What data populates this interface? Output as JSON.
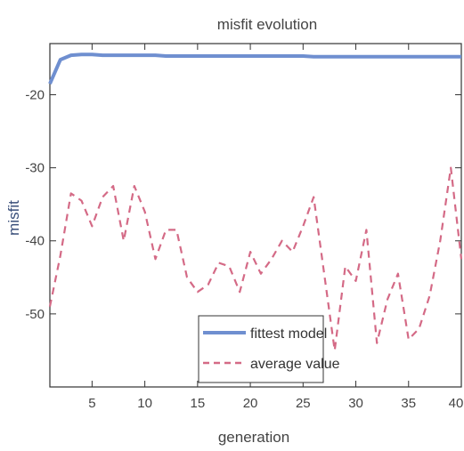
{
  "chart_data": {
    "type": "line",
    "title": "misfit evolution",
    "xlabel": "generation",
    "ylabel": "misfit",
    "xlim": [
      1,
      40
    ],
    "ylim": [
      -60,
      -13
    ],
    "xticks": [
      5,
      10,
      15,
      20,
      25,
      30,
      35,
      40
    ],
    "yticks": [
      -20,
      -30,
      -40,
      -50
    ],
    "legend_position": "bottom-center",
    "series": [
      {
        "name": "fittest model",
        "color": "#6f8fd0",
        "style": "solid",
        "x": [
          1,
          2,
          3,
          4,
          5,
          6,
          7,
          8,
          9,
          10,
          11,
          12,
          13,
          14,
          15,
          16,
          17,
          18,
          19,
          20,
          21,
          22,
          23,
          24,
          25,
          26,
          27,
          28,
          29,
          30,
          31,
          32,
          33,
          34,
          35,
          36,
          37,
          38,
          39,
          40
        ],
        "y": [
          -18.5,
          -15.2,
          -14.6,
          -14.5,
          -14.5,
          -14.6,
          -14.6,
          -14.6,
          -14.6,
          -14.6,
          -14.6,
          -14.7,
          -14.7,
          -14.7,
          -14.7,
          -14.7,
          -14.7,
          -14.7,
          -14.7,
          -14.7,
          -14.7,
          -14.7,
          -14.7,
          -14.7,
          -14.7,
          -14.8,
          -14.8,
          -14.8,
          -14.8,
          -14.8,
          -14.8,
          -14.8,
          -14.8,
          -14.8,
          -14.8,
          -14.8,
          -14.8,
          -14.8,
          -14.8,
          -14.8
        ]
      },
      {
        "name": "average value",
        "color": "#d46a86",
        "style": "dashed",
        "x": [
          1,
          2,
          3,
          4,
          5,
          6,
          7,
          8,
          9,
          10,
          11,
          12,
          13,
          14,
          15,
          16,
          17,
          18,
          19,
          20,
          21,
          22,
          23,
          24,
          25,
          26,
          27,
          28,
          29,
          30,
          31,
          32,
          33,
          34,
          35,
          36,
          37,
          38,
          39,
          40
        ],
        "y": [
          -49,
          -42,
          -33.5,
          -34.5,
          -38,
          -34,
          -32.5,
          -40,
          -32.5,
          -36,
          -42.5,
          -38.5,
          -38.5,
          -45,
          -47,
          -46,
          -43,
          -43.5,
          -47,
          -41.5,
          -44.5,
          -42.5,
          -40,
          -41.5,
          -38,
          -34,
          -44.5,
          -55,
          -43.5,
          -45.5,
          -38.5,
          -54,
          -48,
          -44.5,
          -53.5,
          -52,
          -47.5,
          -40,
          -30,
          -42.5
        ]
      }
    ]
  }
}
